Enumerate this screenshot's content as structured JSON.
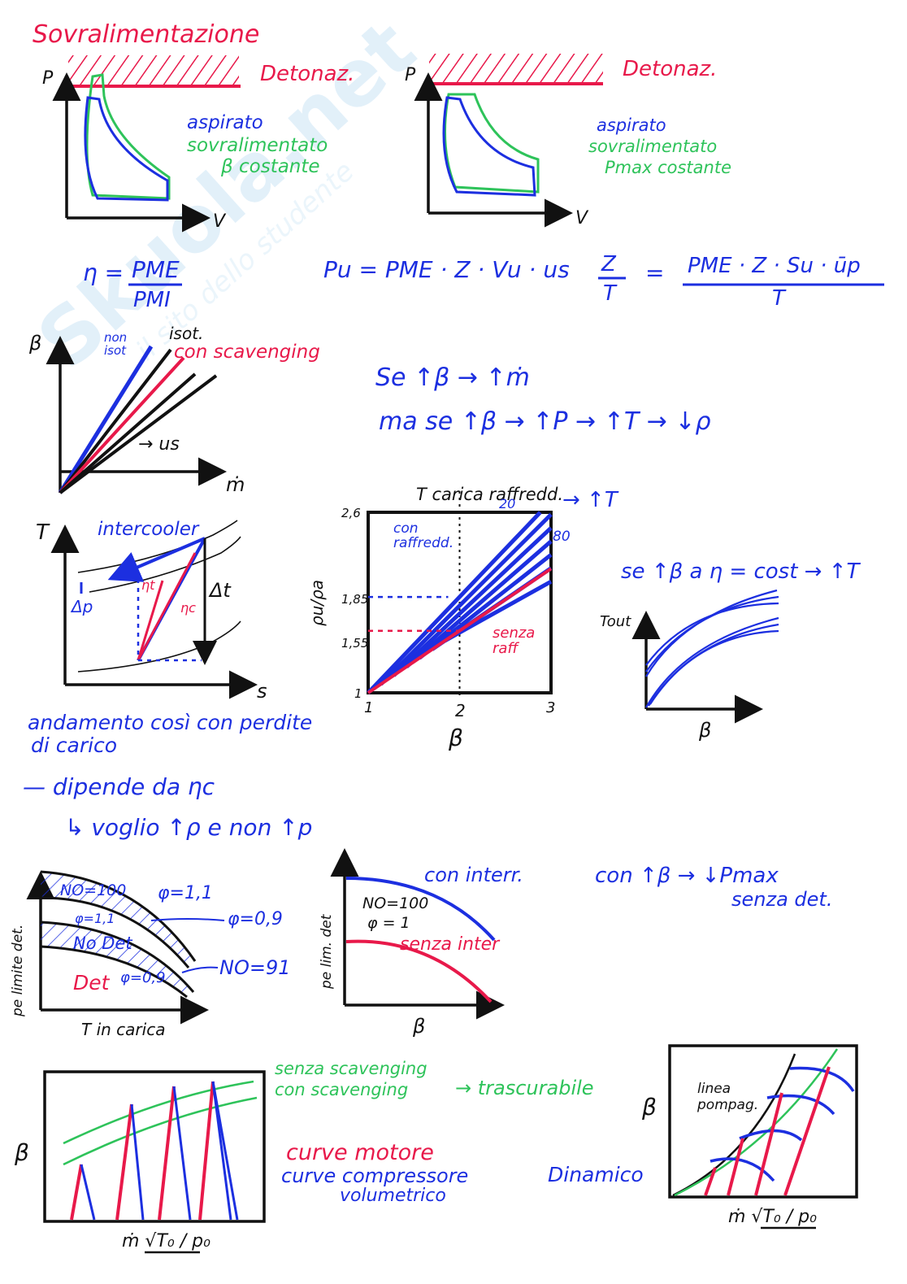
{
  "title": "Sovralimentazione",
  "detonation_label": "Detonaz.",
  "pv_left": {
    "ylabel": "P",
    "xlabel": "V",
    "legend": [
      "aspirato",
      "sovralimentato",
      "β costante"
    ]
  },
  "pv_right": {
    "ylabel": "P",
    "xlabel": "V",
    "legend": [
      "aspirato",
      "sovralimentato",
      "Pmax costante"
    ]
  },
  "eq_eta": {
    "lhs": "η =",
    "num": "PME",
    "den": "PMI"
  },
  "eq_power": {
    "lhs": "Pu = PME · Z · Vu · us",
    "frac1_num": "Z",
    "frac1_den": "T",
    "eq": "=",
    "frac2_num": "PME · Z · Su · ūp",
    "frac2_den": "T"
  },
  "beta_m_chart": {
    "ylabel": "β",
    "xlabel": "ṁ",
    "labels": [
      "non isot",
      "isot.",
      "con scavenging",
      "→ us"
    ]
  },
  "notes_beta": [
    "Se ↑β → ↑ṁ",
    "ma se ↑β → ↑P → ↑T → ↓ρ"
  ],
  "ts_chart": {
    "ylabel": "T",
    "xlabel": "s",
    "labels": [
      "intercooler",
      "Δp",
      "ηt",
      "ηc",
      "Δt"
    ]
  },
  "ratio_chart": {
    "ylabel": "ρu/ρa",
    "xlabel": "β",
    "top_label": "T carica raffredd.",
    "top_arrow": "→ ↑T",
    "yticks": [
      "1",
      "1,55",
      "1,85",
      "2,6"
    ],
    "xticks": [
      "1",
      "2",
      "3"
    ],
    "series_labels": [
      "con raffredd.",
      "senza raff"
    ],
    "line_labels": [
      "20",
      "80"
    ]
  },
  "chart_data": {
    "type": "line",
    "xlabel": "β",
    "ylabel": "ρu/ρa",
    "xlim": [
      1,
      3
    ],
    "ylim": [
      1,
      2.6
    ],
    "series": [
      {
        "name": "senza raff",
        "x": [
          1,
          2,
          3
        ],
        "y": [
          1,
          1.55,
          2.1
        ]
      },
      {
        "name": "con raffredd.",
        "x": [
          1,
          2
        ],
        "y": [
          1,
          1.85
        ]
      }
    ]
  },
  "note_eta": "se ↑β a η = cost → ↑T",
  "tout_chart": {
    "ylabel": "Tout",
    "xlabel": "β"
  },
  "notes_mid": [
    "andamento così con perdite",
    "di carico",
    "— dipende da ηc",
    "↳ voglio ↑ρ e non ↑p"
  ],
  "det_chart": {
    "ylabel": "pe limite det.",
    "xlabel": "T in carica",
    "labels": [
      "NO=100",
      "φ=1,1",
      "φ=1,1",
      "φ=0,9",
      "No Det",
      "NO=91",
      "Det",
      "φ=0,9"
    ]
  },
  "pe_chart": {
    "ylabel": "pe lim. det",
    "xlabel": "β",
    "labels": [
      "NO=100",
      "φ = 1",
      "con interr.",
      "senza inter"
    ]
  },
  "note_pmax": [
    "con ↑β → ↓Pmax",
    "senza det."
  ],
  "vol_chart": {
    "ylabel": "β",
    "xlabel": "ṁ √T₀ / p₀",
    "legend": [
      "senza scavenging",
      "con scavenging",
      "→ trascurabile",
      "curve motore",
      "curve compressore",
      "volumetrico"
    ]
  },
  "dyn_chart": {
    "ylabel": "β",
    "xlabel": "ṁ √T₀ / p₀",
    "labels": [
      "Dinamico",
      "linea pompag."
    ]
  },
  "watermark": [
    "Skuola.net",
    "il sito dello studente"
  ],
  "colors": {
    "red": "#e8194a",
    "blue": "#1c2fe0",
    "green": "#2ec35a",
    "black": "#111111"
  }
}
